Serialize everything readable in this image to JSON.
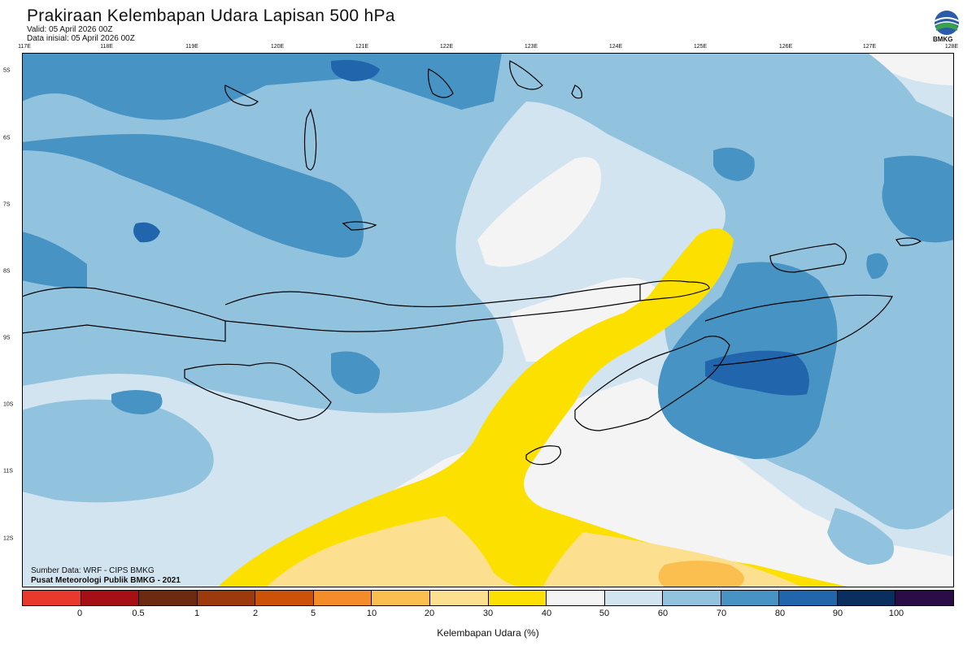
{
  "header": {
    "title": "Prakiraan Kelembapan Udara Lapisan 500 hPa",
    "valid": "Valid: 05 April 2026 00Z",
    "init": "Data inisial: 05 April 2026 00Z"
  },
  "logo": {
    "text": "BMKG",
    "icon": "bmkg-logo-icon"
  },
  "axes": {
    "lon_labels": [
      "117E",
      "118E",
      "119E",
      "120E",
      "121E",
      "122E",
      "123E",
      "124E",
      "125E",
      "126E",
      "127E",
      "128E"
    ],
    "lat_labels": [
      "5S",
      "6S",
      "7S",
      "8S",
      "9S",
      "10S",
      "11S",
      "12S"
    ]
  },
  "credits": {
    "source": "Sumber Data: WRF - CIPS BMKG",
    "producer": "Pusat Meteorologi Publik BMKG - 2021"
  },
  "legend": {
    "ticks": [
      "0",
      "0.5",
      "1",
      "2",
      "5",
      "10",
      "20",
      "30",
      "40",
      "50",
      "60",
      "70",
      "80",
      "90",
      "100"
    ],
    "colors": [
      "#e8392c",
      "#a50f15",
      "#6e2a10",
      "#9c3a0c",
      "#cc520a",
      "#f58c2a",
      "#fbbf4f",
      "#fde08f",
      "#fce000",
      "#f4f4f4",
      "#d2e4f0",
      "#92c3de",
      "#4793c4",
      "#2166ac",
      "#0a2e60",
      "#2a0c47"
    ],
    "unit_label": "Kelembapan Udara (%)"
  },
  "map": {
    "variable": "relative humidity 500 hPa",
    "colors": {
      "background": "#d2e4f0",
      "dry": "#f4f4f4",
      "band": "#fce000",
      "band_light": "#fde08f",
      "band_orange": "#fbbf4f",
      "moist": "#92c3de",
      "wet": "#4793c4",
      "very_wet": "#2166ac",
      "coast": "#000000"
    }
  }
}
